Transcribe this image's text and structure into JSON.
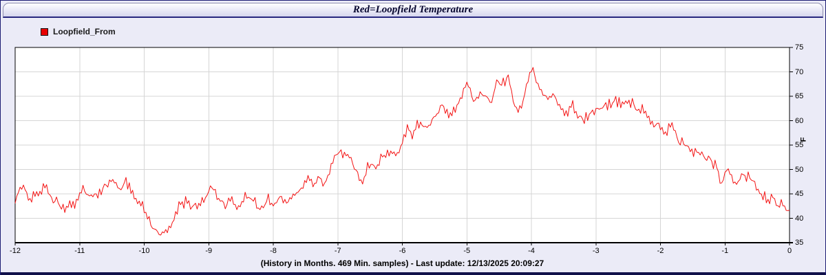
{
  "window": {
    "title": "Red=Loopfield Temperature",
    "footer": "(History in Months. 469 Min. samples) - Last update: 12/13/2025 20:09:27"
  },
  "legend": {
    "label": "Loopfield_From",
    "swatch_color": "#e80000"
  },
  "colors": {
    "page_bg": "#ebebf7",
    "frame_border": "#1b1b72",
    "plot_bg": "#ffffff",
    "plot_border": "#000000",
    "grid": "#d5d5d5",
    "line": "#f31212",
    "tick_text": "#000000"
  },
  "chart_data": {
    "type": "line",
    "title": "Red=Loopfield Temperature",
    "xlabel": "",
    "ylabel": "F",
    "xlim": [
      -12,
      0
    ],
    "ylim": [
      35,
      75
    ],
    "x_ticks": [
      -12,
      -11,
      -10,
      -9,
      -8,
      -7,
      -6,
      -5,
      -4,
      -3,
      -2,
      -1,
      0
    ],
    "y_ticks": [
      35,
      40,
      45,
      50,
      55,
      60,
      65,
      70,
      75
    ],
    "grid": true,
    "legend_position": "top-left",
    "n_samples": 469,
    "jitter_amp": 0.85,
    "series": [
      {
        "name": "Loopfield_From",
        "color": "#f31212",
        "anchors": [
          [
            -12.0,
            43.3
          ],
          [
            -11.93,
            45.6
          ],
          [
            -11.85,
            46.3
          ],
          [
            -11.76,
            43.9
          ],
          [
            -11.68,
            44.6
          ],
          [
            -11.58,
            46.1
          ],
          [
            -11.5,
            45.9
          ],
          [
            -11.42,
            43.6
          ],
          [
            -11.33,
            43.0
          ],
          [
            -11.25,
            42.2
          ],
          [
            -11.15,
            42.8
          ],
          [
            -11.05,
            43.4
          ],
          [
            -10.95,
            45.8
          ],
          [
            -10.85,
            44.3
          ],
          [
            -10.75,
            44.9
          ],
          [
            -10.62,
            46.6
          ],
          [
            -10.5,
            47.6
          ],
          [
            -10.4,
            46.3
          ],
          [
            -10.28,
            47.2
          ],
          [
            -10.15,
            45.0
          ],
          [
            -10.05,
            42.8
          ],
          [
            -9.95,
            40.5
          ],
          [
            -9.85,
            37.8
          ],
          [
            -9.75,
            36.6
          ],
          [
            -9.65,
            37.2
          ],
          [
            -9.55,
            40.0
          ],
          [
            -9.45,
            42.5
          ],
          [
            -9.35,
            43.4
          ],
          [
            -9.25,
            42.6
          ],
          [
            -9.15,
            42.2
          ],
          [
            -9.05,
            44.5
          ],
          [
            -8.98,
            46.4
          ],
          [
            -8.9,
            45.6
          ],
          [
            -8.82,
            43.8
          ],
          [
            -8.73,
            42.1
          ],
          [
            -8.65,
            44.1
          ],
          [
            -8.57,
            42.0
          ],
          [
            -8.48,
            43.9
          ],
          [
            -8.38,
            44.4
          ],
          [
            -8.28,
            43.2
          ],
          [
            -8.18,
            41.7
          ],
          [
            -8.08,
            43.9
          ],
          [
            -7.98,
            43.2
          ],
          [
            -7.88,
            44.6
          ],
          [
            -7.78,
            43.6
          ],
          [
            -7.68,
            44.9
          ],
          [
            -7.58,
            45.8
          ],
          [
            -7.47,
            48.2
          ],
          [
            -7.38,
            46.9
          ],
          [
            -7.28,
            48.0
          ],
          [
            -7.18,
            47.4
          ],
          [
            -7.08,
            51.0
          ],
          [
            -6.98,
            54.2
          ],
          [
            -6.88,
            53.0
          ],
          [
            -6.78,
            51.6
          ],
          [
            -6.68,
            48.6
          ],
          [
            -6.62,
            47.8
          ],
          [
            -6.52,
            51.4
          ],
          [
            -6.42,
            50.9
          ],
          [
            -6.32,
            52.4
          ],
          [
            -6.22,
            53.4
          ],
          [
            -6.12,
            52.9
          ],
          [
            -6.02,
            55.3
          ],
          [
            -5.92,
            58.5
          ],
          [
            -5.85,
            57.2
          ],
          [
            -5.76,
            59.6
          ],
          [
            -5.66,
            58.4
          ],
          [
            -5.56,
            59.4
          ],
          [
            -5.46,
            61.4
          ],
          [
            -5.36,
            63.3
          ],
          [
            -5.28,
            61.2
          ],
          [
            -5.18,
            62.6
          ],
          [
            -5.1,
            64.5
          ],
          [
            -5.0,
            68.2
          ],
          [
            -4.92,
            64.6
          ],
          [
            -4.85,
            63.7
          ],
          [
            -4.77,
            66.0
          ],
          [
            -4.7,
            64.4
          ],
          [
            -4.62,
            63.6
          ],
          [
            -4.52,
            68.3
          ],
          [
            -4.45,
            67.2
          ],
          [
            -4.36,
            69.6
          ],
          [
            -4.28,
            63.8
          ],
          [
            -4.21,
            61.6
          ],
          [
            -4.13,
            64.2
          ],
          [
            -4.06,
            67.8
          ],
          [
            -3.99,
            70.4
          ],
          [
            -3.93,
            68.2
          ],
          [
            -3.86,
            66.2
          ],
          [
            -3.78,
            64.7
          ],
          [
            -3.7,
            65.6
          ],
          [
            -3.62,
            64.4
          ],
          [
            -3.53,
            62.6
          ],
          [
            -3.44,
            61.6
          ],
          [
            -3.36,
            63.1
          ],
          [
            -3.28,
            61.2
          ],
          [
            -3.18,
            60.2
          ],
          [
            -3.08,
            61.4
          ],
          [
            -2.98,
            62.1
          ],
          [
            -2.88,
            63.0
          ],
          [
            -2.78,
            63.6
          ],
          [
            -2.68,
            64.0
          ],
          [
            -2.6,
            63.1
          ],
          [
            -2.52,
            64.2
          ],
          [
            -2.43,
            63.4
          ],
          [
            -2.35,
            62.2
          ],
          [
            -2.27,
            62.6
          ],
          [
            -2.2,
            60.4
          ],
          [
            -2.1,
            58.2
          ],
          [
            -2.02,
            59.8
          ],
          [
            -1.93,
            57.4
          ],
          [
            -1.84,
            59.2
          ],
          [
            -1.74,
            56.2
          ],
          [
            -1.64,
            55.1
          ],
          [
            -1.54,
            54.1
          ],
          [
            -1.44,
            53.6
          ],
          [
            -1.34,
            52.6
          ],
          [
            -1.24,
            52.2
          ],
          [
            -1.14,
            50.6
          ],
          [
            -1.07,
            46.9
          ],
          [
            -0.99,
            49.7
          ],
          [
            -0.91,
            48.4
          ],
          [
            -0.84,
            47.4
          ],
          [
            -0.74,
            48.4
          ],
          [
            -0.66,
            48.7
          ],
          [
            -0.58,
            47.6
          ],
          [
            -0.52,
            46.1
          ],
          [
            -0.44,
            45.2
          ],
          [
            -0.34,
            43.6
          ],
          [
            -0.26,
            43.9
          ],
          [
            -0.18,
            42.3
          ],
          [
            -0.1,
            43.2
          ],
          [
            -0.04,
            41.8
          ],
          [
            0.0,
            42.1
          ]
        ]
      }
    ]
  }
}
